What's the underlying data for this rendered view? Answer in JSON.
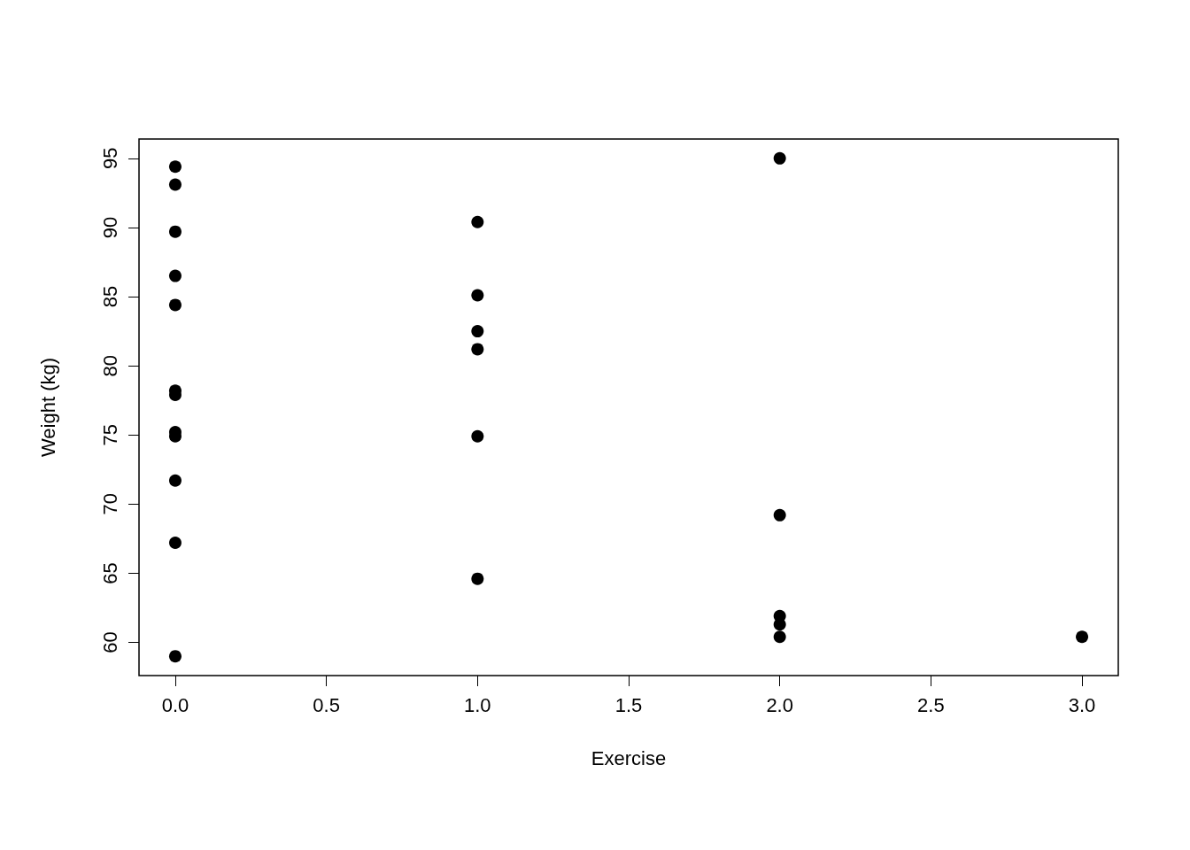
{
  "chart_data": {
    "type": "scatter",
    "xlabel": "Exercise",
    "ylabel": "Weight (kg)",
    "x": [
      0,
      0,
      0,
      0,
      0,
      0,
      0,
      0,
      0,
      0,
      0,
      0,
      1,
      1,
      1,
      1,
      1,
      1,
      2,
      2,
      2,
      2,
      2,
      3
    ],
    "values": [
      94.4,
      93.1,
      89.7,
      86.5,
      84.4,
      78.2,
      77.9,
      75.2,
      74.9,
      71.7,
      67.2,
      59.0,
      90.4,
      85.1,
      82.5,
      81.2,
      74.9,
      64.6,
      95.0,
      69.2,
      61.9,
      61.3,
      60.4,
      60.4
    ],
    "color": "#000000",
    "marker": "circle",
    "xlim": [
      -0.12,
      3.12
    ],
    "xticks": [
      {
        "value": 0,
        "label": "0.0"
      },
      {
        "value": 0.5,
        "label": "0.5"
      },
      {
        "value": 1,
        "label": "1.0"
      },
      {
        "value": 1.5,
        "label": "1.5"
      },
      {
        "value": 2,
        "label": "2.0"
      },
      {
        "value": 2.5,
        "label": "2.5"
      },
      {
        "value": 3,
        "label": "3.0"
      }
    ],
    "ylim": [
      57.6,
      96.4
    ],
    "yticks": [
      60,
      65,
      70,
      75,
      80,
      85,
      90,
      95
    ],
    "grid": false
  }
}
